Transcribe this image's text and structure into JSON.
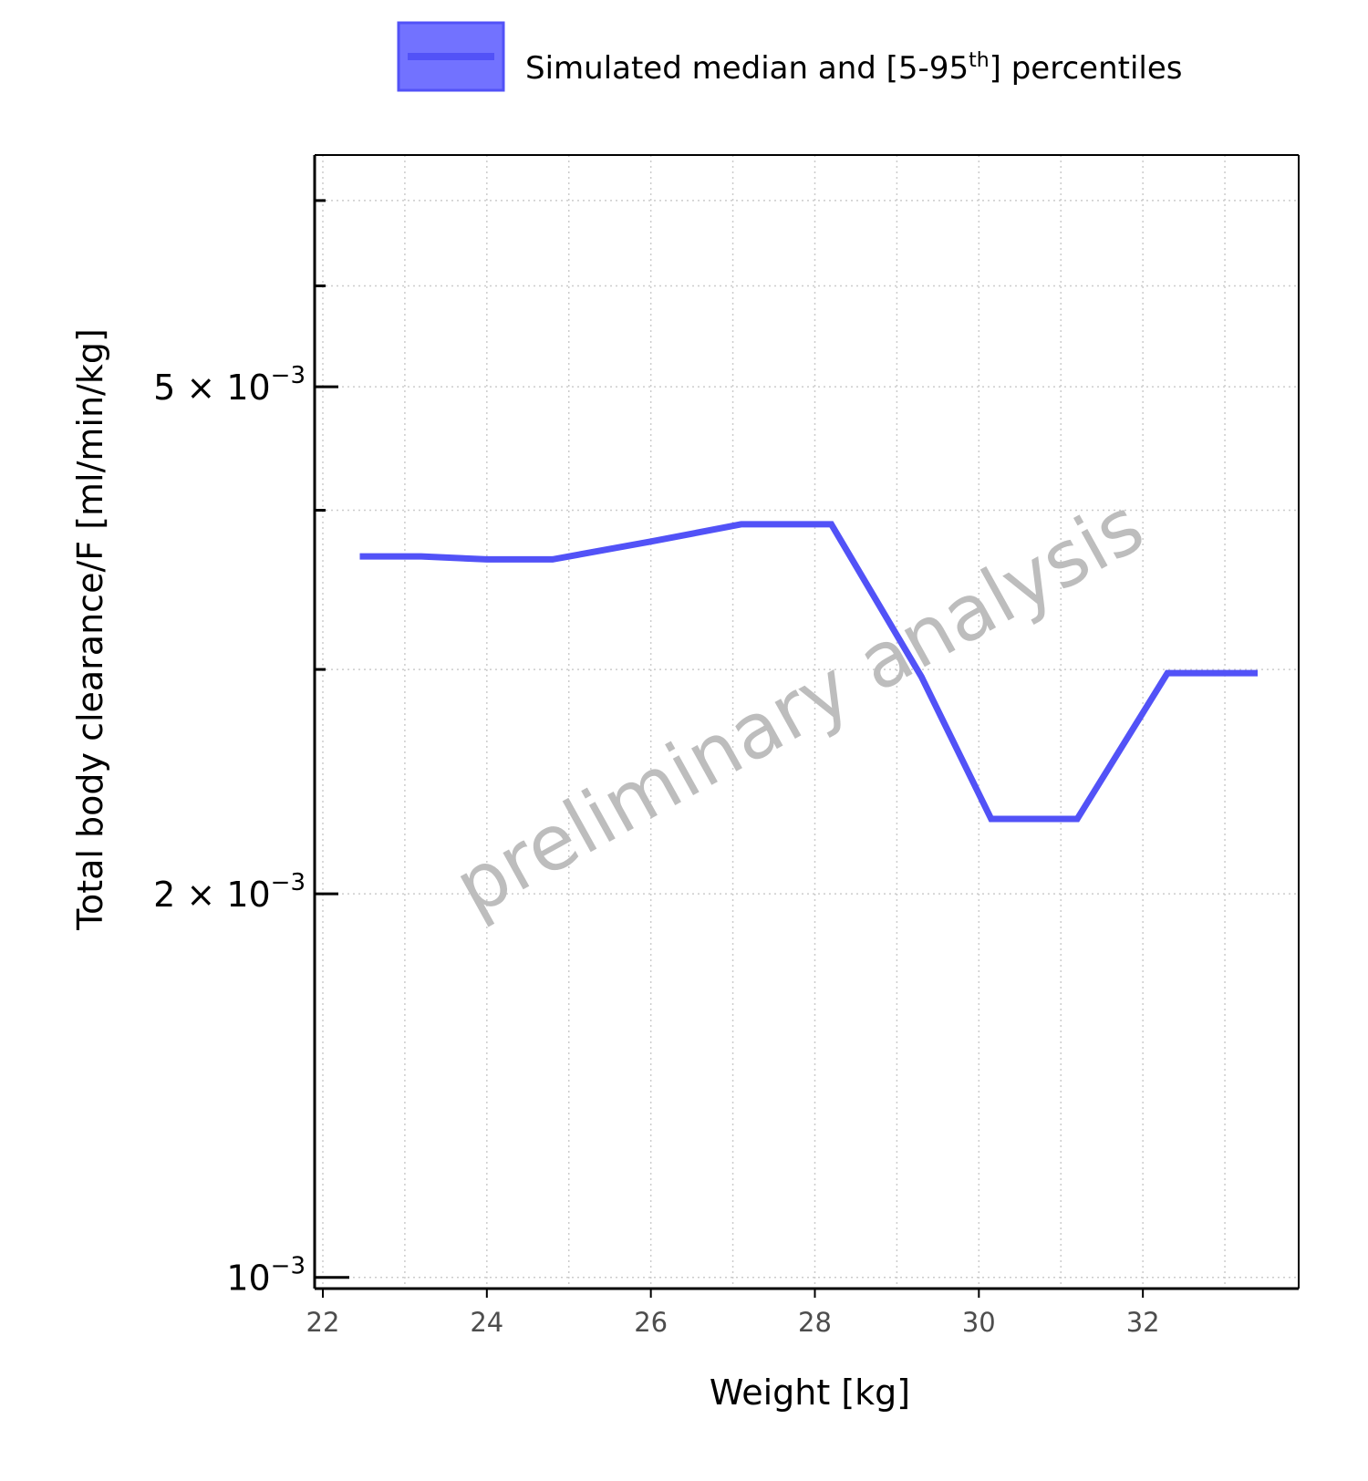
{
  "chart_data": {
    "type": "line",
    "xlabel": "Weight [kg]",
    "ylabel": "Total body clearance/F [ml/min/kg]",
    "y_scale": "log",
    "xlim": [
      21.9,
      33.9
    ],
    "ylim": [
      0.00098,
      0.0076
    ],
    "x_ticks": [
      22,
      24,
      26,
      28,
      30,
      32
    ],
    "y_ticks": [
      {
        "value": 0.005,
        "label": "5 × 10",
        "exp": "−3"
      },
      {
        "value": 0.002,
        "label": "2 × 10",
        "exp": "−3"
      },
      {
        "value": 0.001,
        "label": "10",
        "exp": "−3"
      }
    ],
    "y_minor_ticks": [
      0.007,
      0.006,
      0.004,
      0.003
    ],
    "grid": true,
    "legend": {
      "position": "top",
      "label_main": "Simulated median and [5-95",
      "label_sup": "th",
      "label_end": "] percentiles"
    },
    "series": [
      {
        "name": "Simulated median and [5-95th] percentiles",
        "color": "#5252f7",
        "band_color": "#7272ff",
        "x": [
          22.45,
          23.2,
          24.0,
          24.8,
          26.0,
          27.1,
          28.2,
          29.3,
          30.15,
          31.2,
          32.3,
          33.4
        ],
        "y": [
          0.00368,
          0.00368,
          0.00366,
          0.00366,
          0.00378,
          0.0039,
          0.0039,
          0.00296,
          0.00229,
          0.00229,
          0.00298,
          0.00298
        ]
      }
    ],
    "watermark": "preliminary analysis"
  }
}
